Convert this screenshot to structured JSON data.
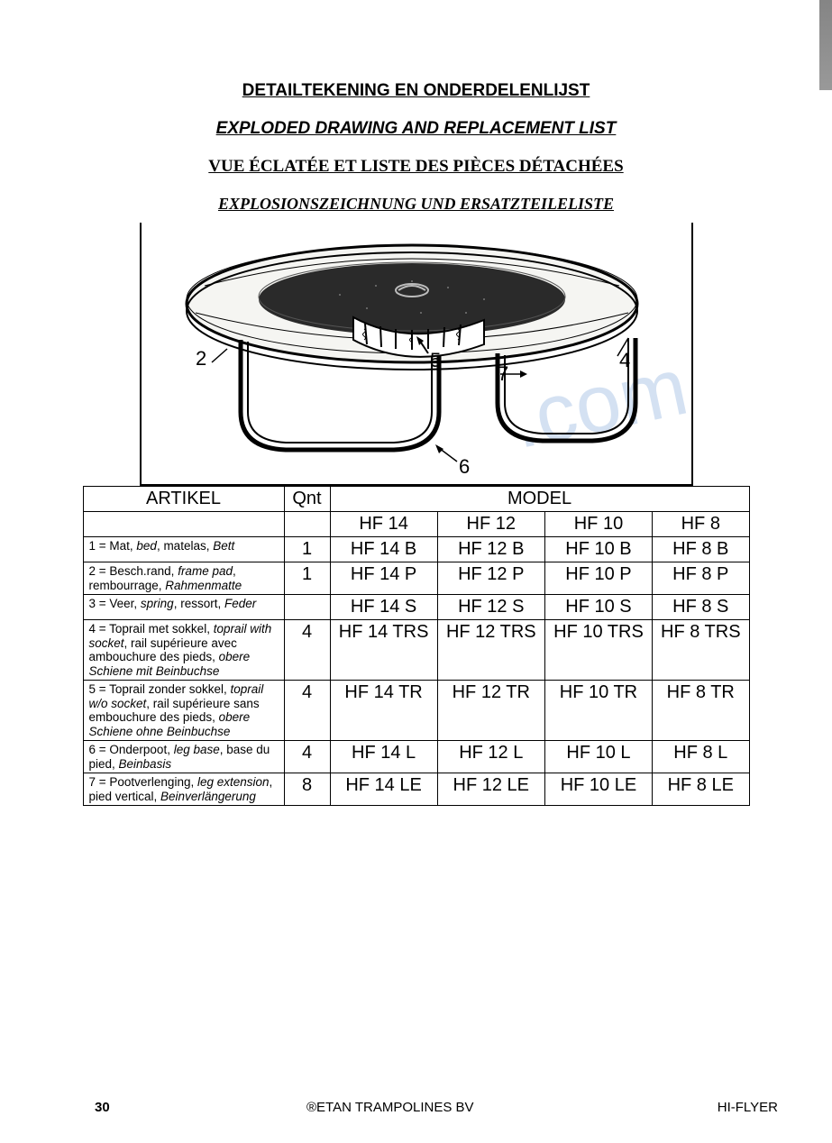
{
  "titles": {
    "nl": "DETAILTEKENING EN ONDERDELENLIJST",
    "en": "EXPLODED DRAWING AND REPLACEMENT LIST",
    "fr": "VUE ÉCLATÉE ET LISTE DES PIÈCES DÉTACHÉES",
    "de": "EXPLOSIONSZEICHNUNG UND ERSATZTEILELISTE"
  },
  "diagram": {
    "callouts": [
      "2",
      "5",
      "7",
      "4",
      "6"
    ],
    "watermark_suffix": ".com"
  },
  "table": {
    "headers": {
      "artikel": "ARTIKEL",
      "qnt": "Qnt",
      "model": "MODEL",
      "models": [
        "HF 14",
        "HF 12",
        "HF 10",
        "HF 8"
      ]
    },
    "rows": [
      {
        "art": "1 = Mat, <i>bed</i>, matelas, <i>Bett</i>",
        "qnt": "1",
        "m": [
          "HF 14 B",
          "HF 12 B",
          "HF 10 B",
          "HF 8 B"
        ]
      },
      {
        "art": "2 = Besch.rand, <i>frame pad</i>, rembourrage, <i>Rahmenmatte</i>",
        "qnt": "1",
        "m": [
          "HF 14 P",
          "HF 12 P",
          "HF 10 P",
          "HF 8 P"
        ]
      },
      {
        "art": "3 = Veer, <i>spring</i>, ressort, <i>Feder</i>",
        "qnt": "",
        "m": [
          "HF 14 S",
          "HF 12 S",
          "HF 10 S",
          "HF 8 S"
        ]
      },
      {
        "art": "4 = Toprail met sokkel, <i>toprail with socket</i>, rail supérieure avec ambouchure des pieds, <i>obere Schiene mit Beinbuchse</i>",
        "qnt": "4",
        "m": [
          "HF 14 TRS",
          "HF 12 TRS",
          "HF 10 TRS",
          "HF 8 TRS"
        ]
      },
      {
        "art": "5 = Toprail zonder sokkel, <i>toprail w/o socket</i>, rail supérieure sans embouchure des pieds, <i>obere Schiene ohne Beinbuchse</i>",
        "qnt": "4",
        "m": [
          "HF 14 TR",
          "HF 12 TR",
          "HF 10 TR",
          "HF 8 TR"
        ]
      },
      {
        "art": "6 = Onderpoot, <i>leg base</i>, base du pied, <i>Beinbasis</i>",
        "qnt": "4",
        "m": [
          "HF 14 L",
          "HF 12 L",
          "HF 10 L",
          "HF 8 L"
        ]
      },
      {
        "art": "7 = Pootverlenging, <i>leg extension</i>, pied vertical, <i>Beinverlängerung</i>",
        "qnt": "8",
        "m": [
          "HF 14 LE",
          "HF 12 LE",
          "HF 10 LE",
          "HF 8 LE"
        ]
      }
    ]
  },
  "footer": {
    "page": "30",
    "company": "®ETAN TRAMPOLINES BV",
    "product": "HI-FLYER"
  },
  "colors": {
    "text": "#000000",
    "background": "#ffffff",
    "watermark": "#b8ceea",
    "border": "#000000"
  }
}
